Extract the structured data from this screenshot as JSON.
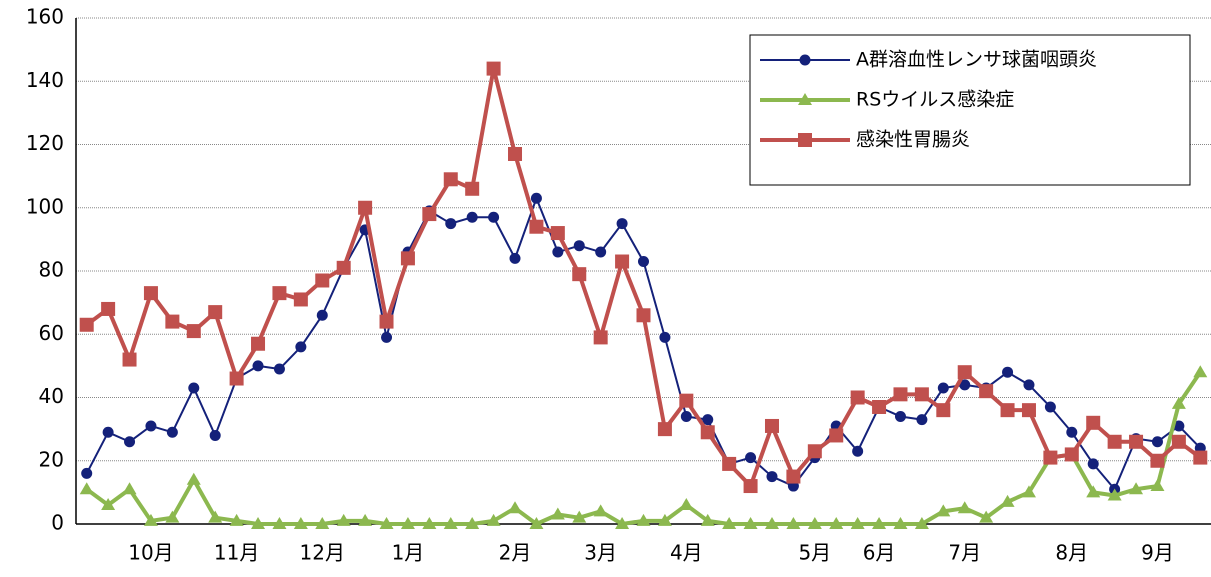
{
  "chart_data": {
    "type": "line",
    "categories": [
      null,
      null,
      null,
      "10月",
      null,
      null,
      null,
      "11月",
      null,
      null,
      null,
      "12月",
      null,
      null,
      null,
      "1月",
      null,
      null,
      null,
      null,
      "2月",
      null,
      null,
      null,
      "3月",
      null,
      null,
      null,
      "4月",
      null,
      null,
      null,
      null,
      null,
      "5月",
      null,
      null,
      "6月",
      null,
      null,
      null,
      "7月",
      null,
      null,
      null,
      null,
      "8月",
      null,
      null,
      null,
      "9月",
      null,
      null
    ],
    "series": [
      {
        "name": "A群溶血性レンサ球菌咽頭炎",
        "color": "#14217a",
        "marker": "circle",
        "values": [
          16,
          29,
          26,
          31,
          29,
          43,
          28,
          46,
          50,
          49,
          56,
          66,
          81,
          93,
          59,
          86,
          99,
          95,
          97,
          97,
          84,
          103,
          86,
          88,
          86,
          95,
          83,
          59,
          34,
          33,
          19,
          21,
          15,
          12,
          21,
          31,
          23,
          37,
          34,
          33,
          43,
          44,
          43,
          48,
          44,
          37,
          29,
          19,
          11,
          27,
          26,
          31,
          24
        ]
      },
      {
        "name": "RSウイルス感染症",
        "color": "#8cb84f",
        "marker": "triangle",
        "values": [
          11,
          6,
          11,
          1,
          2,
          14,
          2,
          1,
          0,
          0,
          0,
          0,
          1,
          1,
          0,
          0,
          0,
          0,
          0,
          1,
          5,
          0,
          3,
          2,
          4,
          0,
          1,
          1,
          6,
          1,
          0,
          0,
          0,
          0,
          0,
          0,
          0,
          0,
          0,
          0,
          4,
          5,
          2,
          7,
          10,
          21,
          22,
          10,
          9,
          11,
          12,
          38,
          48
        ]
      },
      {
        "name": "感染性胃腸炎",
        "color": "#c0504d",
        "marker": "square",
        "values": [
          63,
          68,
          52,
          73,
          64,
          61,
          67,
          46,
          57,
          73,
          71,
          77,
          81,
          100,
          64,
          84,
          98,
          109,
          106,
          144,
          117,
          94,
          92,
          79,
          59,
          83,
          66,
          30,
          39,
          29,
          19,
          12,
          31,
          15,
          23,
          28,
          40,
          37,
          41,
          41,
          36,
          48,
          42,
          36,
          36,
          21,
          22,
          32,
          26,
          26,
          20,
          26,
          21
        ]
      }
    ],
    "ylim": [
      0,
      160
    ],
    "yticks": [
      0,
      20,
      40,
      60,
      80,
      100,
      120,
      140,
      160
    ],
    "grid": true,
    "legend": "upper right"
  }
}
